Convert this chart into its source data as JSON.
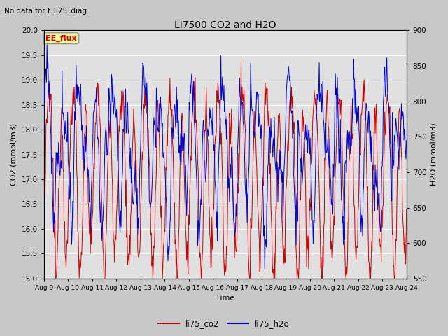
{
  "title": "LI7500 CO2 and H2O",
  "suptitle": "No data for f_li75_diag",
  "xlabel": "Time",
  "ylabel_left": "CO2 (mmol/m3)",
  "ylabel_right": "H2O (mmol/m3)",
  "ylim_left": [
    15.0,
    20.0
  ],
  "ylim_right": [
    550,
    900
  ],
  "yticks_left": [
    15.0,
    15.5,
    16.0,
    16.5,
    17.0,
    17.5,
    18.0,
    18.5,
    19.0,
    19.5,
    20.0
  ],
  "yticks_right": [
    550,
    600,
    650,
    700,
    750,
    800,
    850,
    900
  ],
  "xtick_labels": [
    "Aug 9",
    "Aug 10",
    "Aug 11",
    "Aug 12",
    "Aug 13",
    "Aug 14",
    "Aug 15",
    "Aug 16",
    "Aug 17",
    "Aug 18",
    "Aug 19",
    "Aug 20",
    "Aug 21",
    "Aug 22",
    "Aug 23",
    "Aug 24"
  ],
  "legend_labels": [
    "li75_co2",
    "li75_h2o"
  ],
  "legend_colors": [
    "#cc0000",
    "#0000cc"
  ],
  "annotation_text": "EE_flux",
  "color_co2": "#cc0000",
  "color_h2o": "#0000cc",
  "bg_color": "#e0e0e0",
  "fig_bg_color": "#c8c8c8",
  "grid_color": "white"
}
